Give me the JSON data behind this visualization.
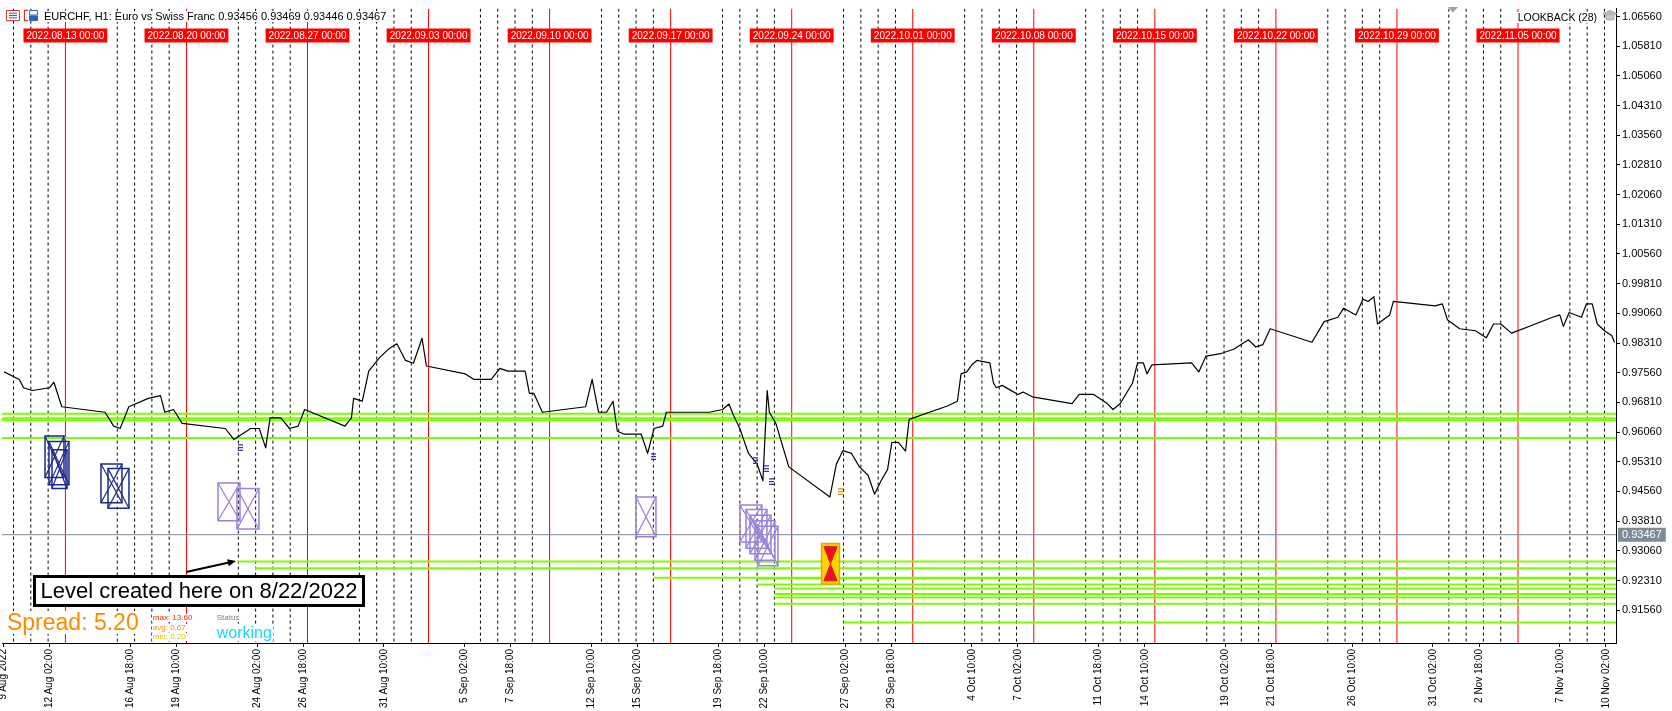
{
  "chart_data": {
    "type": "line",
    "title": "EURCHF, H1: Euro vs Swiss Franc 0.93456 0.93469 0.93446 0.93467",
    "xlim": [
      "2022-08-09T08:00",
      "2022-11-10T16:00"
    ],
    "xticks": [
      {
        "value": "2022-08-09T10:00",
        "label": "9 Aug 2022"
      },
      {
        "value": "2022-08-12T02:00",
        "label": "12 Aug 02:00"
      },
      {
        "value": "2022-08-16T18:00",
        "label": "16 Aug 18:00"
      },
      {
        "value": "2022-08-19T10:00",
        "label": "19 Aug 10:00"
      },
      {
        "value": "2022-08-24T02:00",
        "label": "24 Aug 02:00"
      },
      {
        "value": "2022-08-26T18:00",
        "label": "26 Aug 18:00"
      },
      {
        "value": "2022-08-31T10:00",
        "label": "31 Aug 10:00"
      },
      {
        "value": "2022-09-05T02:00",
        "label": "5 Sep 02:00"
      },
      {
        "value": "2022-09-07T18:00",
        "label": "7 Sep 18:00"
      },
      {
        "value": "2022-09-12T10:00",
        "label": "12 Sep 10:00"
      },
      {
        "value": "2022-09-15T02:00",
        "label": "15 Sep 02:00"
      },
      {
        "value": "2022-09-19T18:00",
        "label": "19 Sep 18:00"
      },
      {
        "value": "2022-09-22T10:00",
        "label": "22 Sep 10:00"
      },
      {
        "value": "2022-09-27T02:00",
        "label": "27 Sep 02:00"
      },
      {
        "value": "2022-09-29T18:00",
        "label": "29 Sep 18:00"
      },
      {
        "value": "2022-10-04T10:00",
        "label": "4 Oct 10:00"
      },
      {
        "value": "2022-10-07T02:00",
        "label": "7 Oct 02:00"
      },
      {
        "value": "2022-10-11T18:00",
        "label": "11 Oct 18:00"
      },
      {
        "value": "2022-10-14T10:00",
        "label": "14 Oct 10:00"
      },
      {
        "value": "2022-10-19T02:00",
        "label": "19 Oct 02:00"
      },
      {
        "value": "2022-10-21T18:00",
        "label": "21 Oct 18:00"
      },
      {
        "value": "2022-10-26T10:00",
        "label": "26 Oct 10:00"
      },
      {
        "value": "2022-10-31T02:00",
        "label": "31 Oct 02:00"
      },
      {
        "value": "2022-11-02T18:00",
        "label": "2 Nov 18:00"
      },
      {
        "value": "2022-11-07T10:00",
        "label": "7 Nov 10:00"
      },
      {
        "value": "2022-11-10T02:00",
        "label": "10 Nov 02:00"
      }
    ],
    "ylim": [
      0.9073,
      1.0676
    ],
    "yticks": [
      {
        "value": 0.9156,
        "label": "0.91560"
      },
      {
        "value": 0.9231,
        "label": "0.92310"
      },
      {
        "value": 0.9306,
        "label": "0.93060"
      },
      {
        "value": 0.9381,
        "label": "0.93810"
      },
      {
        "value": 0.9456,
        "label": "0.94560"
      },
      {
        "value": 0.9531,
        "label": "0.95310"
      },
      {
        "value": 0.9606,
        "label": "0.96060"
      },
      {
        "value": 0.9681,
        "label": "0.96810"
      },
      {
        "value": 0.9756,
        "label": "0.97560"
      },
      {
        "value": 0.9831,
        "label": "0.98310"
      },
      {
        "value": 0.9906,
        "label": "0.99060"
      },
      {
        "value": 0.9981,
        "label": "0.99810"
      },
      {
        "value": 1.0056,
        "label": "1.00560"
      },
      {
        "value": 1.0131,
        "label": "1.01310"
      },
      {
        "value": 1.0206,
        "label": "1.02060"
      },
      {
        "value": 1.0281,
        "label": "1.02810"
      },
      {
        "value": 1.0356,
        "label": "1.03560"
      },
      {
        "value": 1.0431,
        "label": "1.04310"
      },
      {
        "value": 1.0506,
        "label": "1.05060"
      },
      {
        "value": 1.0581,
        "label": "1.05810"
      },
      {
        "value": 1.0656,
        "label": "1.06560"
      }
    ],
    "series": [
      {
        "type": "line",
        "color": "#000000",
        "x": [
          "2022-08-09T11:00",
          "2022-08-10T08:00",
          "2022-08-10T14:00",
          "2022-08-11T02:00",
          "2022-08-12T02:00",
          "2022-08-12T08:00",
          "2022-08-12T19:00",
          "2022-08-15T07:00",
          "2022-08-15T19:00",
          "2022-08-16T04:00",
          "2022-08-16T16:00",
          "2022-08-17T19:00",
          "2022-08-18T12:00",
          "2022-08-18T18:00",
          "2022-08-19T06:00",
          "2022-08-19T18:00",
          "2022-08-22T06:00",
          "2022-08-22T18:00",
          "2022-08-23T17:00",
          "2022-08-24T05:00",
          "2022-08-24T14:00",
          "2022-08-24T20:00",
          "2022-08-25T11:00",
          "2022-08-25T23:00",
          "2022-08-26T11:00",
          "2022-08-26T20:00",
          "2022-08-29T04:00",
          "2022-08-29T13:00",
          "2022-08-29T16:00",
          "2022-08-30T04:00",
          "2022-08-30T13:00",
          "2022-08-31T04:00",
          "2022-08-31T16:00",
          "2022-09-01T04:00",
          "2022-09-01T16:00",
          "2022-09-02T03:00",
          "2022-09-02T15:00",
          "2022-09-02T21:00",
          "2022-09-05T03:00",
          "2022-09-05T15:00",
          "2022-09-06T15:00",
          "2022-09-07T03:00",
          "2022-09-07T14:00",
          "2022-09-08T14:00",
          "2022-09-08T20:00",
          "2022-09-09T02:00",
          "2022-09-09T14:00",
          "2022-09-12T02:00",
          "2022-09-12T11:00",
          "2022-09-12T20:00",
          "2022-09-13T07:00",
          "2022-09-13T16:00",
          "2022-09-13T22:00",
          "2022-09-14T07:00",
          "2022-09-15T07:00",
          "2022-09-15T16:00",
          "2022-09-16T01:00",
          "2022-09-16T13:00",
          "2022-09-16T18:00",
          "2022-09-19T06:00",
          "2022-09-20T00:00",
          "2022-09-20T09:00",
          "2022-09-20T15:00",
          "2022-09-21T00:00",
          "2022-09-21T12:00",
          "2022-09-22T00:00",
          "2022-09-22T08:00",
          "2022-09-22T14:00",
          "2022-09-22T17:00",
          "2022-09-23T02:00",
          "2022-09-23T11:00",
          "2022-09-23T20:00",
          "2022-09-26T05:00",
          "2022-09-26T14:00",
          "2022-09-26T23:00",
          "2022-09-27T11:00",
          "2022-09-27T22:00",
          "2022-09-28T10:00",
          "2022-09-28T19:00",
          "2022-09-29T04:00",
          "2022-09-29T13:00",
          "2022-09-29T19:00",
          "2022-09-30T04:00",
          "2022-09-30T14:00",
          "2022-09-30T19:00",
          "2022-10-03T00:00",
          "2022-10-03T14:00",
          "2022-10-03T19:00",
          "2022-10-04T03:00",
          "2022-10-04T10:00",
          "2022-10-04T17:00",
          "2022-10-05T11:00",
          "2022-10-05T16:00",
          "2022-10-05T20:00",
          "2022-10-06T04:00",
          "2022-10-07T02:00",
          "2022-10-07T09:00",
          "2022-10-07T22:00",
          "2022-10-10T05:00",
          "2022-10-10T15:00",
          "2022-10-11T11:00",
          "2022-10-12T06:00",
          "2022-10-12T14:00",
          "2022-10-13T00:00",
          "2022-10-13T17:00",
          "2022-10-14T00:00",
          "2022-10-14T08:00",
          "2022-10-14T13:00",
          "2022-10-14T20:00",
          "2022-10-17T03:00",
          "2022-10-17T13:00",
          "2022-10-17T23:00",
          "2022-10-18T19:00",
          "2022-10-19T14:00",
          "2022-10-20T10:00",
          "2022-10-20T20:00",
          "2022-10-21T06:00",
          "2022-10-21T16:00",
          "2022-10-24T02:00",
          "2022-10-24T19:00",
          "2022-10-25T14:00",
          "2022-10-25T22:00",
          "2022-10-26T15:00",
          "2022-10-27T01:00",
          "2022-10-27T08:00",
          "2022-10-27T16:00",
          "2022-10-27T21:00",
          "2022-10-28T14:00",
          "2022-10-28T19:00",
          "2022-10-31T05:00",
          "2022-10-31T15:00",
          "2022-10-31T22:00",
          "2022-11-01T15:00",
          "2022-11-02T13:00",
          "2022-11-03T04:00",
          "2022-11-03T14:00",
          "2022-11-04T00:00",
          "2022-11-04T15:00",
          "2022-11-07T00:00",
          "2022-11-07T10:00",
          "2022-11-07T15:00",
          "2022-11-07T23:00",
          "2022-11-08T16:00",
          "2022-11-08T23:00",
          "2022-11-09T07:00",
          "2022-11-09T14:00",
          "2022-11-10T00:00",
          "2022-11-10T10:00",
          "2022-11-10T14:00"
        ],
        "values": [
          0.9758,
          0.9739,
          0.9718,
          0.9711,
          0.9718,
          0.9732,
          0.967,
          0.9656,
          0.9621,
          0.9615,
          0.967,
          0.9691,
          0.9698,
          0.9656,
          0.9663,
          0.9628,
          0.9615,
          0.9587,
          0.9615,
          0.9615,
          0.9566,
          0.9642,
          0.9642,
          0.9615,
          0.9621,
          0.9663,
          0.9621,
          0.9642,
          0.9691,
          0.9684,
          0.976,
          0.9794,
          0.9815,
          0.9829,
          0.9787,
          0.978,
          0.9843,
          0.9773,
          0.9753,
          0.9739,
          0.9739,
          0.9767,
          0.976,
          0.976,
          0.9704,
          0.9704,
          0.9656,
          0.967,
          0.9739,
          0.9656,
          0.9656,
          0.9684,
          0.9608,
          0.9601,
          0.9601,
          0.9552,
          0.9615,
          0.9621,
          0.9656,
          0.9656,
          0.9663,
          0.9677,
          0.9649,
          0.9615,
          0.9552,
          0.9525,
          0.9483,
          0.9711,
          0.9656,
          0.9628,
          0.9573,
          0.9518,
          0.9442,
          0.9525,
          0.9559,
          0.9552,
          0.9518,
          0.9497,
          0.9449,
          0.9483,
          0.9511,
          0.958,
          0.958,
          0.9558,
          0.9638,
          0.9672,
          0.9684,
          0.9753,
          0.9758,
          0.9776,
          0.9787,
          0.9781,
          0.973,
          0.9718,
          0.9724,
          0.9701,
          0.9707,
          0.9695,
          0.9678,
          0.9701,
          0.9701,
          0.9678,
          0.9663,
          0.9678,
          0.973,
          0.9781,
          0.9781,
          0.9753,
          0.9776,
          0.9781,
          0.9758,
          0.9798,
          0.9804,
          0.9816,
          0.9839,
          0.9821,
          0.9827,
          0.9867,
          0.9833,
          0.9885,
          0.9896,
          0.9919,
          0.9902,
          0.9942,
          0.9936,
          0.9948,
          0.9879,
          0.9902,
          0.9936,
          0.9925,
          0.993,
          0.989,
          0.9867,
          0.9862,
          0.9844,
          0.9879,
          0.9879,
          0.9856,
          0.9896,
          0.9902,
          0.9873,
          0.9908,
          0.9896,
          0.993,
          0.993,
          0.9879,
          0.9862,
          0.985,
          0.9833
        ]
      },
      {
        "type": "line",
        "color": "#7cfc00",
        "x": [
          "2022-08-22T23:00",
          "2022-11-10T16:00"
        ],
        "values": [
          0.9279,
          0.9279
        ]
      },
      {
        "type": "line",
        "color": "#7cfc00",
        "x": [
          "2022-08-23T23:00",
          "2022-11-10T16:00"
        ],
        "values": [
          0.9262,
          0.9262
        ]
      },
      {
        "type": "line",
        "color": "#7cfc00",
        "x": [
          "2022-09-16T01:00",
          "2022-11-10T16:00"
        ],
        "values": [
          0.9238,
          0.9238
        ]
      },
      {
        "type": "line",
        "color": "#7cfc00",
        "x": [
          "2022-09-22T00:00",
          "2022-11-10T16:00"
        ],
        "values": [
          0.9236,
          0.9236
        ]
      },
      {
        "type": "line",
        "color": "#7cfc00",
        "x": [
          "2022-09-22T00:00",
          "2022-11-10T16:00"
        ],
        "values": [
          0.9221,
          0.9221
        ]
      },
      {
        "type": "line",
        "color": "#7cfc00",
        "x": [
          "2022-09-23T00:00",
          "2022-11-10T16:00"
        ],
        "values": [
          0.9211,
          0.9211
        ]
      },
      {
        "type": "line",
        "color": "#7cfc00",
        "x": [
          "2022-09-23T00:00",
          "2022-11-10T16:00"
        ],
        "values": [
          0.9197,
          0.9197
        ]
      },
      {
        "type": "line",
        "color": "#7cfc00",
        "x": [
          "2022-09-23T00:00",
          "2022-11-10T16:00"
        ],
        "values": [
          0.9188,
          0.9188
        ]
      },
      {
        "type": "line",
        "color": "#7cfc00",
        "x": [
          "2022-09-23T00:00",
          "2022-11-10T16:00"
        ],
        "values": [
          0.9172,
          0.9172
        ]
      },
      {
        "type": "line",
        "color": "#7cfc00",
        "x": [
          "2022-09-27T00:00",
          "2022-11-10T16:00"
        ],
        "values": [
          0.9125,
          0.9125
        ]
      }
    ],
    "ref_lines": [
      {
        "axis": "x",
        "value": "2022-08-10",
        "color": "#000000",
        "line_style": "dashed"
      },
      {
        "axis": "x",
        "value": "2022-08-11",
        "color": "#000000",
        "line_style": "dashed"
      },
      {
        "axis": "x",
        "value": "2022-08-12",
        "color": "#000000",
        "line_style": "dashed"
      },
      {
        "axis": "x",
        "value": "2022-08-16",
        "color": "#000000",
        "line_style": "dashed"
      },
      {
        "axis": "x",
        "value": "2022-08-17",
        "color": "#000000",
        "line_style": "dashed"
      },
      {
        "axis": "x",
        "value": "2022-08-18",
        "color": "#000000",
        "line_style": "dashed"
      },
      {
        "axis": "x",
        "value": "2022-08-19",
        "color": "#000000",
        "line_style": "dashed"
      },
      {
        "axis": "x",
        "value": "2022-08-23",
        "color": "#000000",
        "line_style": "dashed"
      },
      {
        "axis": "x",
        "value": "2022-08-24",
        "color": "#000000",
        "line_style": "dashed"
      },
      {
        "axis": "x",
        "value": "2022-08-25",
        "color": "#000000",
        "line_style": "dashed"
      },
      {
        "axis": "x",
        "value": "2022-08-26",
        "color": "#000000",
        "line_style": "dashed"
      },
      {
        "axis": "x",
        "value": "2022-08-30",
        "color": "#000000",
        "line_style": "dashed"
      },
      {
        "axis": "x",
        "value": "2022-08-31",
        "color": "#000000",
        "line_style": "dashed"
      },
      {
        "axis": "x",
        "value": "2022-09-01",
        "color": "#000000",
        "line_style": "dashed"
      },
      {
        "axis": "x",
        "value": "2022-09-02",
        "color": "#000000",
        "line_style": "dashed"
      },
      {
        "axis": "x",
        "value": "2022-09-06",
        "color": "#000000",
        "line_style": "dashed"
      },
      {
        "axis": "x",
        "value": "2022-09-07",
        "color": "#000000",
        "line_style": "dashed"
      },
      {
        "axis": "x",
        "value": "2022-09-08",
        "color": "#000000",
        "line_style": "dashed"
      },
      {
        "axis": "x",
        "value": "2022-09-09",
        "color": "#000000",
        "line_style": "dashed"
      },
      {
        "axis": "x",
        "value": "2022-09-13",
        "color": "#000000",
        "line_style": "dashed"
      },
      {
        "axis": "x",
        "value": "2022-09-14",
        "color": "#000000",
        "line_style": "dashed"
      },
      {
        "axis": "x",
        "value": "2022-09-15",
        "color": "#000000",
        "line_style": "dashed"
      },
      {
        "axis": "x",
        "value": "2022-09-16",
        "color": "#000000",
        "line_style": "dashed"
      },
      {
        "axis": "x",
        "value": "2022-09-20",
        "color": "#000000",
        "line_style": "dashed"
      },
      {
        "axis": "x",
        "value": "2022-09-21",
        "color": "#000000",
        "line_style": "dashed"
      },
      {
        "axis": "x",
        "value": "2022-09-22",
        "color": "#000000",
        "line_style": "dashed"
      },
      {
        "axis": "x",
        "value": "2022-09-23",
        "color": "#000000",
        "line_style": "dashed"
      },
      {
        "axis": "x",
        "value": "2022-09-27",
        "color": "#000000",
        "line_style": "dashed"
      },
      {
        "axis": "x",
        "value": "2022-09-28",
        "color": "#000000",
        "line_style": "dashed"
      },
      {
        "axis": "x",
        "value": "2022-09-29",
        "color": "#000000",
        "line_style": "dashed"
      },
      {
        "axis": "x",
        "value": "2022-09-30",
        "color": "#000000",
        "line_style": "dashed"
      },
      {
        "axis": "x",
        "value": "2022-10-04",
        "color": "#000000",
        "line_style": "dashed"
      },
      {
        "axis": "x",
        "value": "2022-10-05",
        "color": "#000000",
        "line_style": "dashed"
      },
      {
        "axis": "x",
        "value": "2022-10-06",
        "color": "#000000",
        "line_style": "dashed"
      },
      {
        "axis": "x",
        "value": "2022-10-07",
        "color": "#000000",
        "line_style": "dashed"
      },
      {
        "axis": "x",
        "value": "2022-10-11",
        "color": "#000000",
        "line_style": "dashed"
      },
      {
        "axis": "x",
        "value": "2022-10-12",
        "color": "#000000",
        "line_style": "dashed"
      },
      {
        "axis": "x",
        "value": "2022-10-13",
        "color": "#000000",
        "line_style": "dashed"
      },
      {
        "axis": "x",
        "value": "2022-10-14",
        "color": "#000000",
        "line_style": "dashed"
      },
      {
        "axis": "x",
        "value": "2022-10-18",
        "color": "#000000",
        "line_style": "dashed"
      },
      {
        "axis": "x",
        "value": "2022-10-19",
        "color": "#000000",
        "line_style": "dashed"
      },
      {
        "axis": "x",
        "value": "2022-10-20",
        "color": "#000000",
        "line_style": "dashed"
      },
      {
        "axis": "x",
        "value": "2022-10-21",
        "color": "#000000",
        "line_style": "dashed"
      },
      {
        "axis": "x",
        "value": "2022-10-25",
        "color": "#000000",
        "line_style": "dashed"
      },
      {
        "axis": "x",
        "value": "2022-10-26",
        "color": "#000000",
        "line_style": "dashed"
      },
      {
        "axis": "x",
        "value": "2022-10-27",
        "color": "#000000",
        "line_style": "dashed"
      },
      {
        "axis": "x",
        "value": "2022-10-28",
        "color": "#000000",
        "line_style": "dashed"
      },
      {
        "axis": "x",
        "value": "2022-11-01",
        "color": "#000000",
        "line_style": "dashed"
      },
      {
        "axis": "x",
        "value": "2022-11-02",
        "color": "#000000",
        "line_style": "dashed"
      },
      {
        "axis": "x",
        "value": "2022-11-03",
        "color": "#000000",
        "line_style": "dashed"
      },
      {
        "axis": "x",
        "value": "2022-11-04",
        "color": "#000000",
        "line_style": "dashed"
      },
      {
        "axis": "x",
        "value": "2022-11-08",
        "color": "#000000",
        "line_style": "dashed"
      },
      {
        "axis": "x",
        "value": "2022-11-09",
        "color": "#000000",
        "line_style": "dashed"
      },
      {
        "axis": "x",
        "value": "2022-11-10",
        "color": "#000000",
        "line_style": "dashed"
      },
      {
        "axis": "x",
        "value": "2022-08-13",
        "label": "2022.08.13 00:00",
        "color": "#ff0000"
      },
      {
        "axis": "x",
        "value": "2022-08-20",
        "label": "2022.08.20 00:00",
        "color": "#ff0000"
      },
      {
        "axis": "x",
        "value": "2022-08-27",
        "label": "2022.08.27 00:00",
        "color": "#ff0000"
      },
      {
        "axis": "x",
        "value": "2022-09-03",
        "label": "2022.09.03 00:00",
        "color": "#ff0000"
      },
      {
        "axis": "x",
        "value": "2022-09-10",
        "label": "2022.09.10 00:00",
        "color": "#ff0000"
      },
      {
        "axis": "x",
        "value": "2022-09-17",
        "label": "2022.09.17 00:00",
        "color": "#ff0000"
      },
      {
        "axis": "x",
        "value": "2022-09-24",
        "label": "2022.09.24 00:00",
        "color": "#ff0000"
      },
      {
        "axis": "x",
        "value": "2022-10-01",
        "label": "2022.10.01 00:00",
        "color": "#ff0000"
      },
      {
        "axis": "x",
        "value": "2022-10-08",
        "label": "2022.10.08 00:00",
        "color": "#ff0000"
      },
      {
        "axis": "x",
        "value": "2022-10-15",
        "label": "2022.10.15 00:00",
        "color": "#ff0000"
      },
      {
        "axis": "x",
        "value": "2022-10-22",
        "label": "2022.10.22 00:00",
        "color": "#ff0000"
      },
      {
        "axis": "x",
        "value": "2022-10-29",
        "label": "2022.10.29 00:00",
        "color": "#ff0000"
      },
      {
        "axis": "x",
        "value": "2022-11-05",
        "label": "2022.11.05 00:00",
        "color": "#ff0000"
      },
      {
        "axis": "y",
        "value": 0.9652,
        "color": "#7cfc00"
      },
      {
        "axis": "y",
        "value": 0.9641,
        "color": "#7cfc00"
      },
      {
        "axis": "y",
        "value": 0.9636,
        "color": "#7cfc00"
      },
      {
        "axis": "y",
        "value": 0.9591,
        "color": "#7cfc00"
      },
      {
        "axis": "y",
        "value": 0.93467,
        "label": "0.93467",
        "color": "#7d8b99"
      }
    ],
    "annotations": [
      {
        "text": "Level created here on 8/22/2022",
        "x": "2022-08-22T23:00",
        "y": 0.9279
      },
      "LOOKBACK (28)",
      "Spread: 5.20",
      "max: 13.60",
      "avg: 0.67",
      "min: 0.20",
      "Status",
      "working"
    ]
  }
}
